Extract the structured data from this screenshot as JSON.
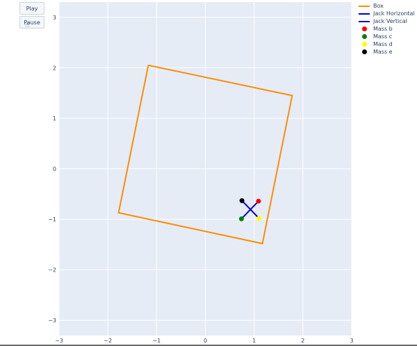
{
  "controls": {
    "play_label": "Play",
    "pause_label": "Pause"
  },
  "chart_data": {
    "type": "scatter",
    "title": "",
    "xlabel": "",
    "ylabel": "",
    "xlim": [
      -3,
      3
    ],
    "ylim": [
      -3.3,
      3.3
    ],
    "xticks": [
      "−3",
      "−2",
      "−1",
      "0",
      "1",
      "2",
      "3"
    ],
    "xtick_values": [
      -3,
      -2,
      -1,
      0,
      1,
      2,
      3
    ],
    "yticks": [
      "−3",
      "−2",
      "−1",
      "0",
      "1",
      "2",
      "3"
    ],
    "ytick_values": [
      -3,
      -2,
      -1,
      0,
      1,
      2,
      3
    ],
    "grid": true,
    "legend_position": "top-right",
    "background": "#e5ecf6",
    "series": [
      {
        "name": "Box",
        "kind": "line",
        "color": "#ff8c00",
        "x": [
          -1.17,
          1.78,
          1.17,
          -1.78,
          -1.17
        ],
        "y": [
          2.05,
          1.45,
          -1.48,
          -0.87,
          2.05
        ]
      },
      {
        "name": "Jack Horizontal",
        "kind": "line",
        "color": "#0000cd",
        "x": [
          0.74,
          1.09
        ],
        "y": [
          -0.99,
          -0.64
        ]
      },
      {
        "name": "Jack Vertical",
        "kind": "line",
        "color": "#0000cd",
        "x": [
          0.75,
          1.1
        ],
        "y": [
          -0.63,
          -0.98
        ]
      },
      {
        "name": "Mass b",
        "kind": "marker",
        "color": "#ff0000",
        "x": [
          1.09
        ],
        "y": [
          -0.64
        ]
      },
      {
        "name": "Mass c",
        "kind": "marker",
        "color": "#008000",
        "x": [
          0.74
        ],
        "y": [
          -0.99
        ]
      },
      {
        "name": "Mass d",
        "kind": "marker",
        "color": "#ffff00",
        "x": [
          1.1
        ],
        "y": [
          -0.98
        ]
      },
      {
        "name": "Mass e",
        "kind": "marker",
        "color": "#000000",
        "x": [
          0.75
        ],
        "y": [
          -0.63
        ]
      }
    ]
  }
}
